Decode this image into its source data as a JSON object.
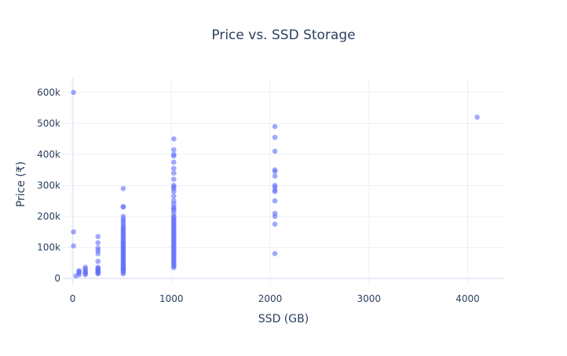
{
  "chart_data": {
    "type": "scatter",
    "title": "Price vs. SSD Storage",
    "xlabel": "SSD (GB)",
    "ylabel": "Price (₹)",
    "xlim": [
      -100,
      4370
    ],
    "ylim": [
      -20000,
      645000
    ],
    "x_ticks": [
      0,
      1000,
      2000,
      3000,
      4000
    ],
    "x_tick_labels": [
      "0",
      "1000",
      "2000",
      "3000",
      "4000"
    ],
    "y_ticks": [
      0,
      100000,
      200000,
      300000,
      400000,
      500000,
      600000
    ],
    "y_tick_labels": [
      "0",
      "100k",
      "200k",
      "300k",
      "400k",
      "500k",
      "600k"
    ],
    "grid": true,
    "marker_color": "#636efa",
    "marker_opacity": 0.6,
    "series": [
      {
        "points": [
          [
            8,
            600000
          ],
          [
            8,
            150000
          ],
          [
            8,
            105000
          ],
          [
            32,
            8000
          ],
          [
            64,
            12000
          ],
          [
            64,
            18000
          ],
          [
            64,
            22000
          ],
          [
            64,
            25000
          ],
          [
            128,
            12000
          ],
          [
            128,
            16000
          ],
          [
            128,
            20000
          ],
          [
            128,
            24000
          ],
          [
            128,
            30000
          ],
          [
            128,
            36000
          ],
          [
            256,
            15000
          ],
          [
            256,
            18000
          ],
          [
            256,
            20000
          ],
          [
            256,
            22000
          ],
          [
            256,
            25000
          ],
          [
            256,
            28000
          ],
          [
            256,
            30000
          ],
          [
            256,
            33000
          ],
          [
            256,
            36000
          ],
          [
            256,
            55000
          ],
          [
            256,
            80000
          ],
          [
            256,
            90000
          ],
          [
            256,
            98000
          ],
          [
            256,
            115000
          ],
          [
            256,
            135000
          ],
          [
            512,
            15000
          ],
          [
            512,
            20000
          ],
          [
            512,
            25000
          ],
          [
            512,
            28000
          ],
          [
            512,
            30000
          ],
          [
            512,
            33000
          ],
          [
            512,
            36000
          ],
          [
            512,
            40000
          ],
          [
            512,
            44000
          ],
          [
            512,
            48000
          ],
          [
            512,
            52000
          ],
          [
            512,
            56000
          ],
          [
            512,
            60000
          ],
          [
            512,
            64000
          ],
          [
            512,
            68000
          ],
          [
            512,
            72000
          ],
          [
            512,
            76000
          ],
          [
            512,
            80000
          ],
          [
            512,
            84000
          ],
          [
            512,
            88000
          ],
          [
            512,
            92000
          ],
          [
            512,
            96000
          ],
          [
            512,
            100000
          ],
          [
            512,
            104000
          ],
          [
            512,
            108000
          ],
          [
            512,
            112000
          ],
          [
            512,
            116000
          ],
          [
            512,
            120000
          ],
          [
            512,
            125000
          ],
          [
            512,
            130000
          ],
          [
            512,
            135000
          ],
          [
            512,
            140000
          ],
          [
            512,
            145000
          ],
          [
            512,
            150000
          ],
          [
            512,
            155000
          ],
          [
            512,
            160000
          ],
          [
            512,
            165000
          ],
          [
            512,
            170000
          ],
          [
            512,
            178000
          ],
          [
            512,
            185000
          ],
          [
            512,
            192000
          ],
          [
            512,
            200000
          ],
          [
            512,
            230000
          ],
          [
            512,
            232000
          ],
          [
            512,
            290000
          ],
          [
            1024,
            35000
          ],
          [
            1024,
            40000
          ],
          [
            1024,
            45000
          ],
          [
            1024,
            50000
          ],
          [
            1024,
            55000
          ],
          [
            1024,
            60000
          ],
          [
            1024,
            65000
          ],
          [
            1024,
            70000
          ],
          [
            1024,
            75000
          ],
          [
            1024,
            80000
          ],
          [
            1024,
            85000
          ],
          [
            1024,
            90000
          ],
          [
            1024,
            95000
          ],
          [
            1024,
            100000
          ],
          [
            1024,
            105000
          ],
          [
            1024,
            110000
          ],
          [
            1024,
            115000
          ],
          [
            1024,
            120000
          ],
          [
            1024,
            125000
          ],
          [
            1024,
            130000
          ],
          [
            1024,
            135000
          ],
          [
            1024,
            140000
          ],
          [
            1024,
            145000
          ],
          [
            1024,
            150000
          ],
          [
            1024,
            155000
          ],
          [
            1024,
            160000
          ],
          [
            1024,
            165000
          ],
          [
            1024,
            170000
          ],
          [
            1024,
            175000
          ],
          [
            1024,
            180000
          ],
          [
            1024,
            185000
          ],
          [
            1024,
            190000
          ],
          [
            1024,
            195000
          ],
          [
            1024,
            200000
          ],
          [
            1024,
            210000
          ],
          [
            1024,
            220000
          ],
          [
            1024,
            225000
          ],
          [
            1024,
            230000
          ],
          [
            1024,
            240000
          ],
          [
            1024,
            250000
          ],
          [
            1024,
            265000
          ],
          [
            1024,
            280000
          ],
          [
            1024,
            290000
          ],
          [
            1024,
            295000
          ],
          [
            1024,
            300000
          ],
          [
            1024,
            320000
          ],
          [
            1024,
            340000
          ],
          [
            1024,
            355000
          ],
          [
            1024,
            375000
          ],
          [
            1024,
            395000
          ],
          [
            1024,
            400000
          ],
          [
            1024,
            415000
          ],
          [
            1024,
            450000
          ],
          [
            2048,
            80000
          ],
          [
            2048,
            175000
          ],
          [
            2048,
            200000
          ],
          [
            2048,
            210000
          ],
          [
            2048,
            250000
          ],
          [
            2048,
            280000
          ],
          [
            2048,
            285000
          ],
          [
            2048,
            295000
          ],
          [
            2048,
            300000
          ],
          [
            2048,
            330000
          ],
          [
            2048,
            345000
          ],
          [
            2048,
            350000
          ],
          [
            2048,
            410000
          ],
          [
            2048,
            455000
          ],
          [
            2048,
            490000
          ],
          [
            4096,
            520000
          ]
        ]
      }
    ]
  }
}
